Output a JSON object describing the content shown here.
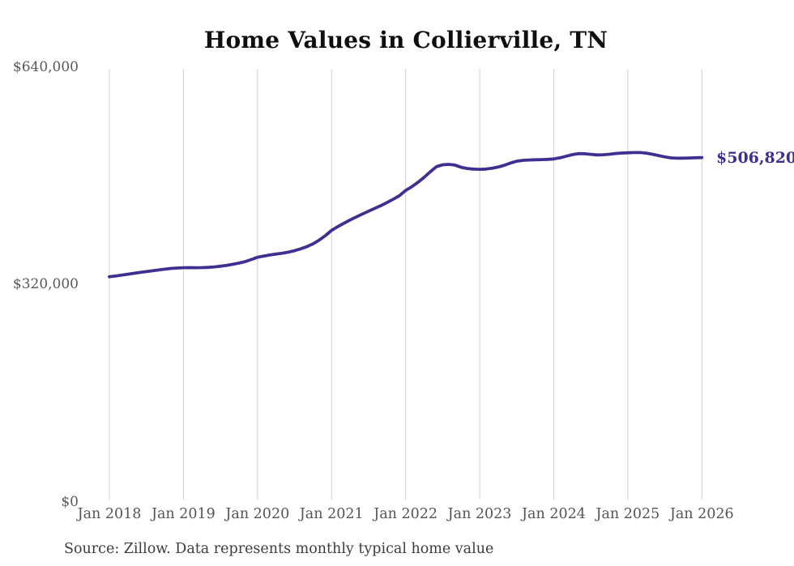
{
  "chart": {
    "title": "Home Values in Collierville, TN",
    "end_label": "$506,820",
    "line_color": "#3c3191",
    "gridline_color": "#d0d0d0",
    "title_color": "#0f0f0f",
    "tick_color": "#595959"
  },
  "footer": {
    "source": "Source: Zillow. Data represents monthly typical home value"
  },
  "chart_data": {
    "type": "line",
    "title": "Home Values in Collierville, TN",
    "xlabel": "",
    "ylabel": "",
    "ylim": [
      0,
      640000
    ],
    "grid": "vertical-year-gridlines-only",
    "legend": "none",
    "x_start": "Jan 2018",
    "x_interval": "monthly",
    "x_tick_labels": [
      "Jan 2018",
      "Jan 2019",
      "Jan 2020",
      "Jan 2021",
      "Jan 2022",
      "Jan 2023",
      "Jan 2024",
      "Jan 2025",
      "Jan 2026"
    ],
    "y_ticks": [
      {
        "label": "$0",
        "value": 0
      },
      {
        "label": "$320,000",
        "value": 320000
      },
      {
        "label": "$640,000",
        "value": 640000
      }
    ],
    "annotation": "$506,820",
    "end_value": 506820,
    "series": [
      {
        "name": "Monthly typical home value",
        "values": [
          331500,
          332600,
          333900,
          335300,
          336600,
          337900,
          339100,
          340300,
          341500,
          342700,
          343700,
          344400,
          344800,
          344900,
          344800,
          344900,
          345300,
          346000,
          347000,
          348300,
          349800,
          351600,
          353800,
          356800,
          360200,
          362000,
          363500,
          364800,
          366100,
          367700,
          369900,
          372600,
          375800,
          380000,
          385500,
          392000,
          399800,
          405200,
          410200,
          415000,
          419500,
          423800,
          428000,
          432100,
          436200,
          440700,
          445600,
          450800,
          458500,
          464000,
          470500,
          477800,
          486000,
          493500,
          496300,
          496800,
          495800,
          492600,
          490800,
          489900,
          489600,
          490000,
          491100,
          492900,
          495600,
          498900,
          501500,
          502800,
          503300,
          503600,
          503900,
          504300,
          504800,
          506500,
          508900,
          511200,
          512700,
          512500,
          511600,
          510800,
          511000,
          511800,
          512800,
          513500,
          513900,
          514200,
          514300,
          513400,
          511800,
          509800,
          507800,
          506400,
          505900,
          506000,
          506300,
          506600,
          506820
        ]
      }
    ]
  }
}
